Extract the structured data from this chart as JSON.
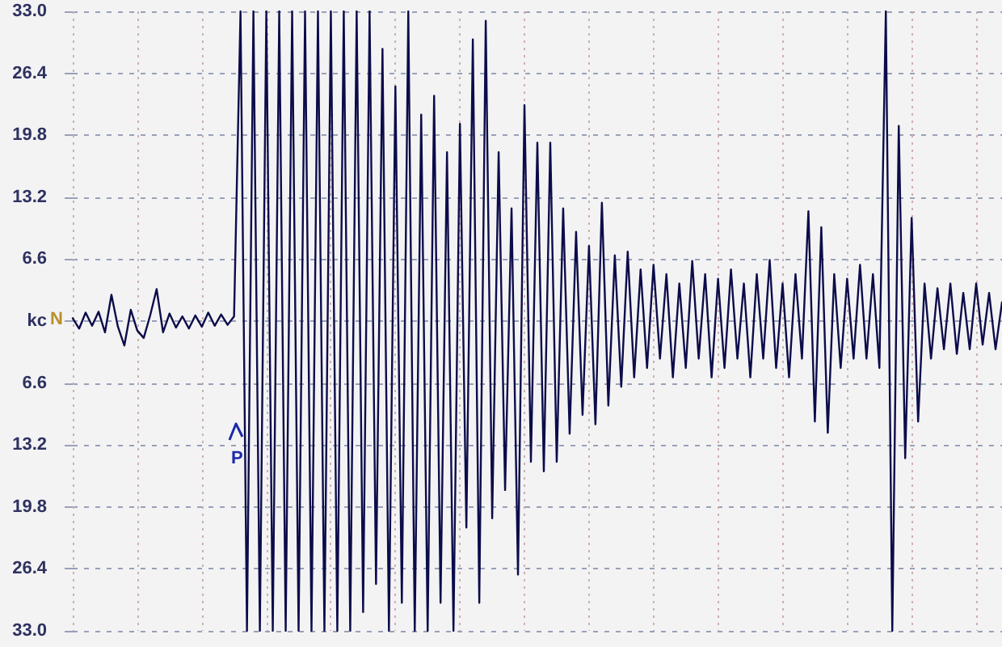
{
  "chart_data": {
    "type": "line",
    "categories": [
      null,
      null,
      null,
      null,
      null,
      null,
      null,
      null,
      null,
      null,
      null,
      null,
      null,
      null,
      null,
      null,
      null,
      null,
      null,
      null,
      null,
      null,
      null,
      null,
      null,
      null,
      null,
      null,
      null,
      null,
      null,
      null,
      null,
      null,
      null,
      null,
      null,
      null,
      null,
      null,
      null,
      null,
      null,
      null,
      null,
      null,
      null,
      null,
      null,
      null,
      null,
      null,
      null,
      null,
      null,
      null,
      null,
      null,
      null,
      null,
      null,
      null,
      null,
      null,
      null,
      null,
      null,
      null,
      null,
      null,
      null,
      null,
      null,
      null,
      null,
      null,
      null,
      null,
      null,
      null,
      null,
      null,
      null,
      null,
      null,
      null,
      null,
      null,
      null,
      null,
      null,
      null,
      null,
      null,
      null,
      null,
      null,
      null,
      null,
      null,
      null,
      null,
      null,
      null,
      null,
      null,
      null,
      null,
      null,
      null,
      null,
      null,
      null,
      null,
      null,
      null,
      null,
      null,
      null,
      null,
      null,
      null,
      null,
      null,
      null,
      null,
      null,
      null,
      null,
      null,
      null,
      null,
      null,
      null,
      null,
      null,
      null,
      null,
      null,
      null,
      null,
      null,
      null,
      null,
      null
    ],
    "values": [
      0.3,
      -0.8,
      0.9,
      -0.5,
      1.0,
      -1.2,
      2.8,
      -0.6,
      -2.6,
      1.2,
      -1.0,
      -1.8,
      0.6,
      3.4,
      -1.2,
      0.8,
      -0.7,
      0.5,
      -0.8,
      0.6,
      -0.6,
      0.9,
      -0.5,
      0.7,
      -0.4,
      0.5,
      33,
      -33,
      33,
      -33,
      33,
      -33,
      33,
      -33,
      33,
      -33,
      33,
      -33,
      33,
      -33,
      33,
      -33,
      33,
      -33,
      33,
      -31,
      33,
      -28,
      29,
      -33,
      25,
      -30,
      33,
      -33,
      22,
      -33,
      24,
      -30,
      18,
      -33,
      21,
      -22,
      30,
      -30,
      32,
      -21,
      18,
      -18,
      12,
      -27,
      23,
      -15,
      19,
      -16,
      19,
      -15,
      12,
      -12,
      9.5,
      -10,
      8,
      -11,
      12.6,
      -9,
      7,
      -7,
      7.4,
      -6,
      5.5,
      -5,
      6,
      -4,
      5,
      -6,
      4,
      -5,
      6.4,
      -4,
      5,
      -6,
      4.5,
      -5,
      5.5,
      -4,
      4,
      -6,
      5,
      -4,
      6.5,
      -5,
      4,
      -6,
      5,
      -4,
      11.7,
      -10.7,
      10,
      -11.9,
      5,
      -5,
      4.5,
      -4,
      6,
      -4,
      5,
      -5,
      33,
      -33,
      20.8,
      -14.6,
      11,
      -10.7,
      4,
      -4,
      3.5,
      -3,
      4,
      -3.5,
      3,
      -3,
      4,
      -2.5,
      3,
      -3,
      2
    ],
    "color": "#0c0c4a",
    "ylim": [
      -33,
      33
    ],
    "yticks": [
      {
        "value": -33,
        "label": "33.0"
      },
      {
        "value": -26.4,
        "label": "26.4"
      },
      {
        "value": -19.8,
        "label": "19.8"
      },
      {
        "value": -13.2,
        "label": "13.2"
      },
      {
        "value": -6.6,
        "label": "6.6"
      },
      {
        "value": 0,
        "label": "kc"
      },
      6.6,
      13.2,
      19.8,
      26.4,
      {
        "value": 33,
        "label": "33.0"
      }
    ],
    "grid": true,
    "tick_labels": "y",
    "marker": "none",
    "line_style": "solid",
    "annotations": [
      "N",
      "P"
    ]
  }
}
